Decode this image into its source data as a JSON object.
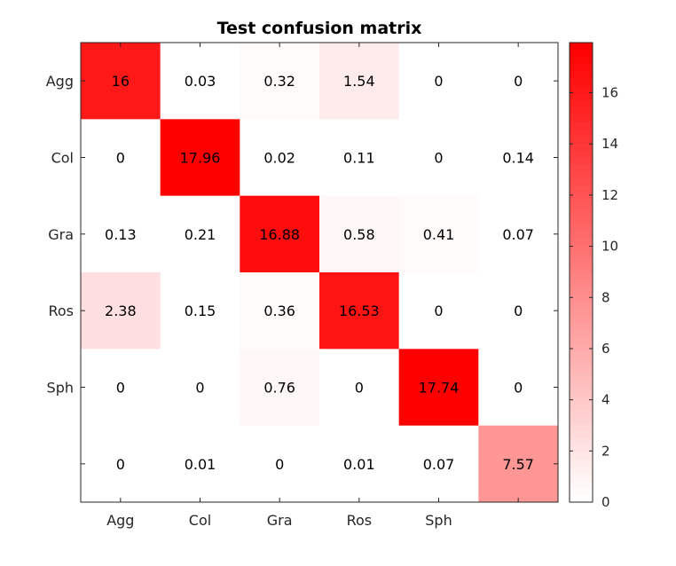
{
  "chart_data": {
    "type": "heatmap",
    "title": "Test confusion matrix",
    "x_categories": [
      "Agg",
      "Col",
      "Gra",
      "Ros",
      "Sph",
      ""
    ],
    "y_categories": [
      "Agg",
      "Col",
      "Gra",
      "Ros",
      "Sph",
      ""
    ],
    "values": [
      [
        16,
        0.03,
        0.32,
        1.54,
        0,
        0
      ],
      [
        0,
        17.96,
        0.02,
        0.11,
        0,
        0.14
      ],
      [
        0.13,
        0.21,
        16.88,
        0.58,
        0.41,
        0.07
      ],
      [
        2.38,
        0.15,
        0.36,
        16.53,
        0,
        0
      ],
      [
        0,
        0,
        0.76,
        0,
        17.74,
        0
      ],
      [
        0,
        0.01,
        0,
        0.01,
        0.07,
        7.57
      ]
    ],
    "cell_labels": [
      [
        "16",
        "0.03",
        "0.32",
        "1.54",
        "0",
        "0"
      ],
      [
        "0",
        "17.96",
        "0.02",
        "0.11",
        "0",
        "0.14"
      ],
      [
        "0.13",
        "0.21",
        "16.88",
        "0.58",
        "0.41",
        "0.07"
      ],
      [
        "2.38",
        "0.15",
        "0.36",
        "16.53",
        "0",
        "0"
      ],
      [
        "0",
        "0",
        "0.76",
        "0",
        "17.74",
        "0"
      ],
      [
        "0",
        "0.01",
        "0",
        "0.01",
        "0.07",
        "7.57"
      ]
    ],
    "colormap": {
      "low_color": "#ffffff",
      "high_color": "#ff0000",
      "steps": 64
    },
    "color_range": [
      0,
      17.96
    ],
    "colorbar": {
      "placement": "right",
      "ticks": [
        0,
        2,
        4,
        6,
        8,
        10,
        12,
        14,
        16
      ],
      "tick_labels": [
        "0",
        "2",
        "4",
        "6",
        "8",
        "10",
        "12",
        "14",
        "16"
      ]
    },
    "grid": false
  }
}
